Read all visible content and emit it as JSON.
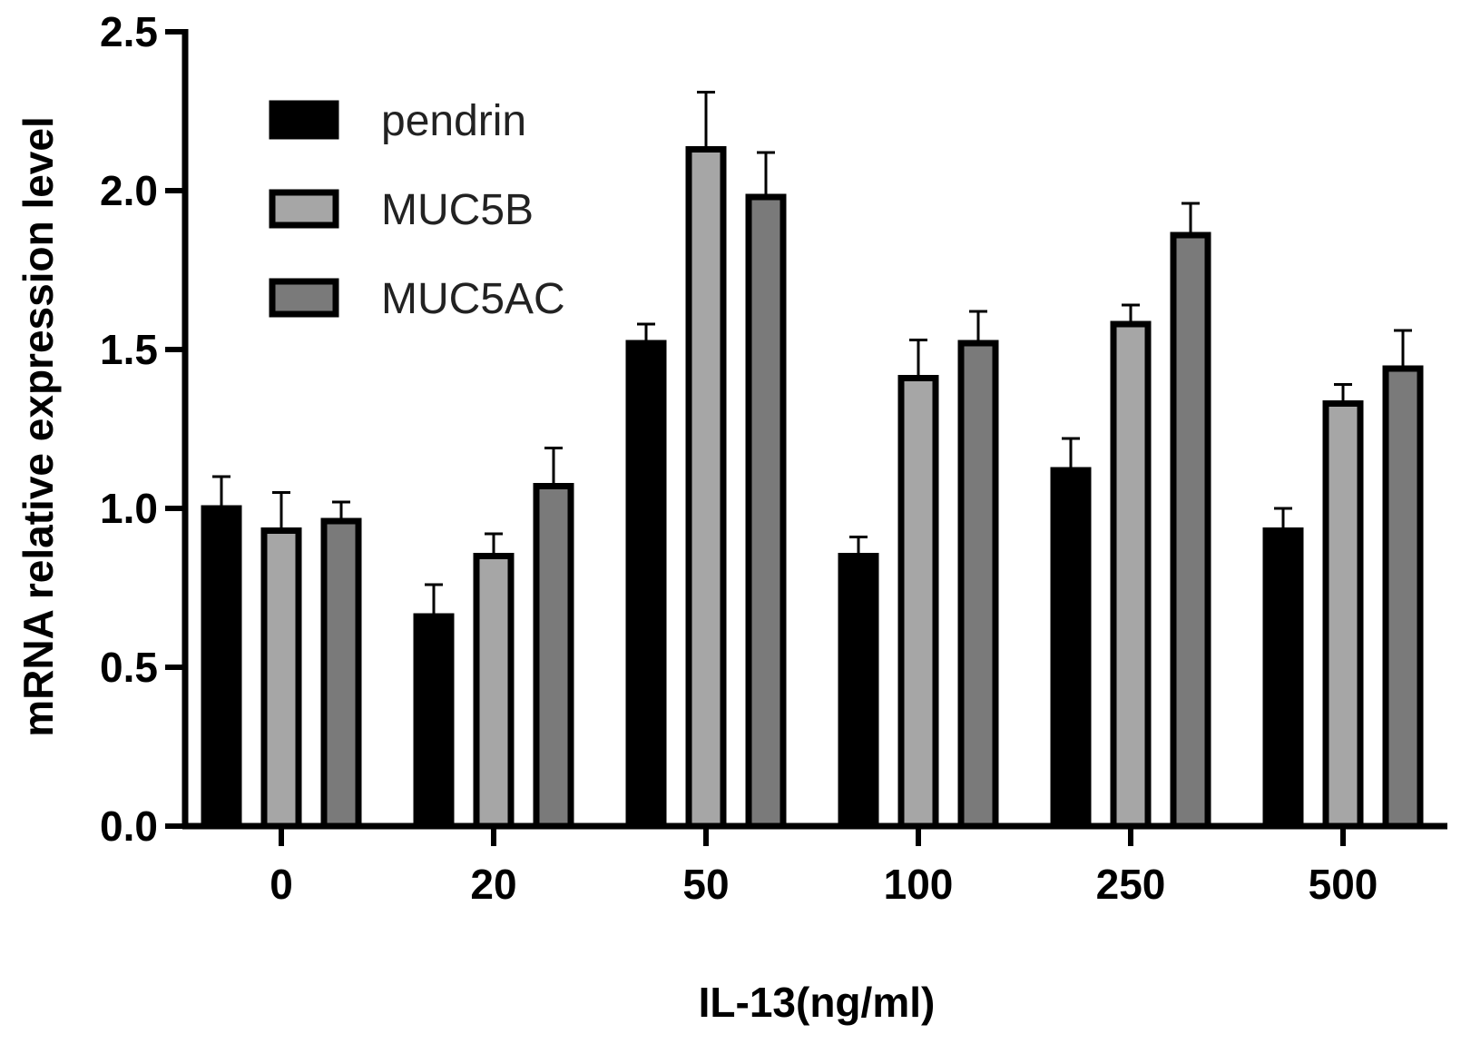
{
  "chart_data": {
    "type": "bar",
    "xlabel": "IL-13(ng/ml)",
    "ylabel": "mRNA relative expression level",
    "categories": [
      "0",
      "20",
      "50",
      "100",
      "250",
      "500"
    ],
    "ylim": [
      0.0,
      2.5
    ],
    "yticks": [
      "0.0",
      "0.5",
      "1.0",
      "1.5",
      "2.0",
      "2.5"
    ],
    "grid": false,
    "legend": "top-left",
    "series": [
      {
        "name": "pendrin",
        "color": "#000000",
        "values": [
          1.0,
          0.66,
          1.52,
          0.85,
          1.12,
          0.93
        ],
        "errors": [
          0.1,
          0.1,
          0.06,
          0.06,
          0.1,
          0.07
        ]
      },
      {
        "name": "MUC5B",
        "color": "#a6a6a6",
        "values": [
          0.93,
          0.85,
          2.13,
          1.41,
          1.58,
          1.33
        ],
        "errors": [
          0.12,
          0.07,
          0.18,
          0.12,
          0.06,
          0.06
        ]
      },
      {
        "name": "MUC5AC",
        "color": "#7a7a7a",
        "values": [
          0.96,
          1.07,
          1.98,
          1.52,
          1.86,
          1.44
        ],
        "errors": [
          0.06,
          0.12,
          0.14,
          0.1,
          0.1,
          0.12
        ]
      }
    ]
  }
}
